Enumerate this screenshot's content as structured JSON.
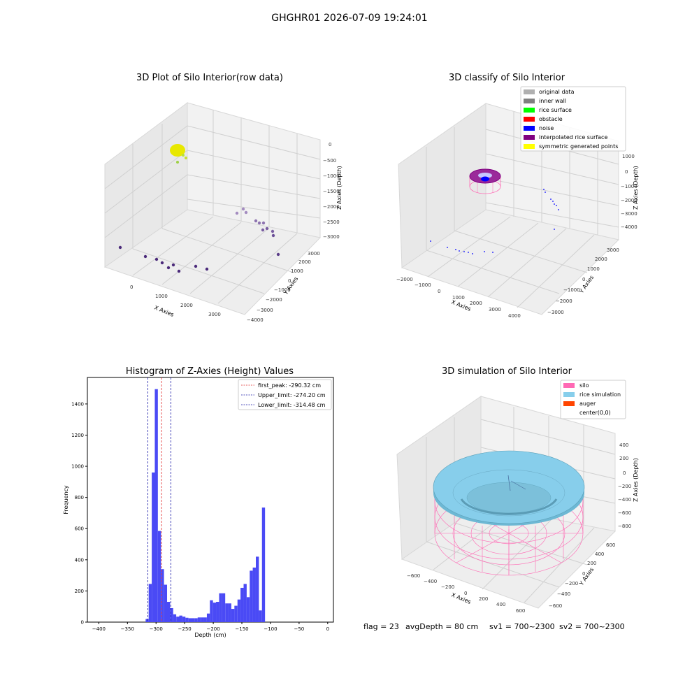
{
  "suptitle": "GHGHR01 2026-07-09 19:24:01",
  "colors": {
    "pane": "#f2f2f2",
    "pane_side": "#e6e6e6",
    "grid": "#d0d0d0",
    "hist_bar": "#4a4af5",
    "first_peak": "#e03030",
    "limits": "#1a1aa8",
    "silo": "#ff69b4",
    "rice": "#87ceeb",
    "auger": "#ff4500",
    "original": "#b0b0b0",
    "inner_wall": "#808080",
    "rice_surface": "#00ff00",
    "obstacle": "#ff0000",
    "noise": "#0000ff",
    "interpolated": "#800080",
    "symmetric": "#ffff00",
    "raw_yellow": "#e8e800",
    "raw_purple": "#4b2a7a",
    "raw_light": "#a48cc0"
  },
  "chart_data": [
    {
      "type": "scatter",
      "subtype": "3d",
      "title": "3D Plot of Silo Interior(row data)",
      "xlabel": "X Axies",
      "ylabel": "Y Axies",
      "zlabel": "Z Axies (Depth)",
      "xticks": [
        "0",
        "1000",
        "2000",
        "3000"
      ],
      "yticks": [
        "−4000",
        "−3000",
        "−2000",
        "−1000",
        "0",
        "1000",
        "2000",
        "3000"
      ],
      "zticks": [
        "0",
        "−500",
        "−1000",
        "−1500",
        "−2000",
        "−2500",
        "−3000"
      ],
      "clusters": [
        {
          "name": "surface cluster",
          "points": "dense",
          "color": "yellow-green"
        },
        {
          "name": "lower wall points",
          "color": "purple"
        },
        {
          "name": "side wall points",
          "color": "light purple"
        }
      ]
    },
    {
      "type": "scatter",
      "subtype": "3d",
      "title": "3D classify of Silo Interior",
      "xlabel": "X Axies",
      "ylabel": "Y Axies",
      "zlabel": "Z Axies (Depth)",
      "xticks": [
        "−2000",
        "−1000",
        "0",
        "1000",
        "2000",
        "3000",
        "4000"
      ],
      "yticks": [
        "−3000",
        "−2000",
        "−1000",
        "0",
        "1000",
        "2000",
        "3000"
      ],
      "zticks": [
        "1000",
        "0",
        "−1000",
        "−2000",
        "−3000",
        "−4000"
      ],
      "legend": [
        "original data",
        "inner wall",
        "rice surface",
        "obstacle",
        "noise",
        "interpolated rice surface",
        "symmetric generated points"
      ],
      "legend_placement": "top-right"
    },
    {
      "type": "bar",
      "subtype": "histogram",
      "title": "Histogram of Z-Axies (Height) Values",
      "xlabel": "Depth (cm)",
      "ylabel": "Frequency",
      "xlim": [
        -420,
        10
      ],
      "ylim": [
        0,
        1570
      ],
      "xticks": [
        -400,
        -350,
        -300,
        -250,
        -200,
        -150,
        -100,
        -50,
        0
      ],
      "yticks": [
        0,
        200,
        400,
        600,
        800,
        1000,
        1200,
        1400
      ],
      "bin_width": 5.35,
      "bins": [
        {
          "x": -315.5,
          "y": 20
        },
        {
          "x": -310.2,
          "y": 245
        },
        {
          "x": -304.8,
          "y": 960
        },
        {
          "x": -299.5,
          "y": 1495
        },
        {
          "x": -294.1,
          "y": 585
        },
        {
          "x": -288.8,
          "y": 340
        },
        {
          "x": -283.4,
          "y": 240
        },
        {
          "x": -278.1,
          "y": 130
        },
        {
          "x": -272.7,
          "y": 90
        },
        {
          "x": -267.4,
          "y": 50
        },
        {
          "x": -262.0,
          "y": 35
        },
        {
          "x": -256.7,
          "y": 42
        },
        {
          "x": -251.3,
          "y": 35
        },
        {
          "x": -246.0,
          "y": 28
        },
        {
          "x": -240.6,
          "y": 25
        },
        {
          "x": -235.3,
          "y": 25
        },
        {
          "x": -229.9,
          "y": 25
        },
        {
          "x": -224.6,
          "y": 30
        },
        {
          "x": -219.2,
          "y": 30
        },
        {
          "x": -213.9,
          "y": 30
        },
        {
          "x": -208.5,
          "y": 55
        },
        {
          "x": -203.2,
          "y": 140
        },
        {
          "x": -197.8,
          "y": 125
        },
        {
          "x": -192.5,
          "y": 130
        },
        {
          "x": -187.1,
          "y": 185
        },
        {
          "x": -181.8,
          "y": 185
        },
        {
          "x": -176.4,
          "y": 120
        },
        {
          "x": -171.1,
          "y": 120
        },
        {
          "x": -165.7,
          "y": 85
        },
        {
          "x": -160.4,
          "y": 105
        },
        {
          "x": -155.0,
          "y": 145
        },
        {
          "x": -149.7,
          "y": 220
        },
        {
          "x": -144.3,
          "y": 245
        },
        {
          "x": -139.0,
          "y": 160
        },
        {
          "x": -133.6,
          "y": 330
        },
        {
          "x": -128.3,
          "y": 350
        },
        {
          "x": -122.9,
          "y": 420
        },
        {
          "x": -117.6,
          "y": 75
        },
        {
          "x": -112.2,
          "y": 735
        }
      ],
      "bins_note": "",
      "vlines": [
        {
          "label": "first_peak: -290.32 cm",
          "x": -290.32,
          "color": "red"
        },
        {
          "label": "Upper_limit: -274.20 cm",
          "x": -274.2,
          "color": "blue"
        },
        {
          "label": "Lower_limit: -314.48 cm",
          "x": -314.48,
          "color": "blue"
        }
      ],
      "legend_placement": "top-right"
    },
    {
      "type": "scatter",
      "subtype": "3d-surface",
      "title": "3D simulation of Silo Interior",
      "xlabel": "X Axies",
      "ylabel": "Y Axies",
      "zlabel": "Z Axies (Depth)",
      "xticks": [
        "−600",
        "−400",
        "−200",
        "0",
        "200",
        "400",
        "600"
      ],
      "yticks": [
        "−600",
        "−400",
        "−200",
        "0",
        "200",
        "400",
        "600"
      ],
      "zticks": [
        "400",
        "200",
        "0",
        "−200",
        "−400",
        "−600",
        "−800"
      ],
      "legend": [
        "silo",
        "rice simulation",
        "auger",
        "center(0,0)"
      ],
      "legend_placement": "top-right"
    }
  ],
  "footer": {
    "flag": "flag = 23",
    "avg": "avgDepth = 80 cm",
    "sv1": "sv1 = 700~2300",
    "sv2": "sv2 = 700~2300"
  }
}
